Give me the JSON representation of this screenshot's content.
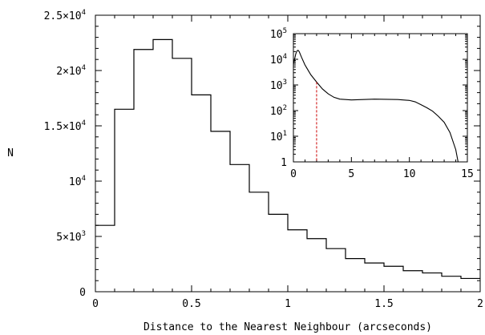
{
  "chart_data": [
    {
      "type": "histogram",
      "scale": "linear",
      "xlabel": "Distance to the Nearest Neighbour (arcseconds)",
      "ylabel": "N",
      "xlim": [
        0,
        2
      ],
      "ylim": [
        0,
        25000
      ],
      "bin_edges": [
        0,
        0.1,
        0.2,
        0.3,
        0.4,
        0.5,
        0.6,
        0.7,
        0.8,
        0.9,
        1.0,
        1.1,
        1.2,
        1.3,
        1.4,
        1.5,
        1.6,
        1.7,
        1.8,
        1.9,
        2.0
      ],
      "values": [
        6000,
        16500,
        21900,
        22800,
        21100,
        17800,
        14500,
        11500,
        9000,
        7000,
        5600,
        4800,
        3900,
        3000,
        2600,
        2300,
        1900,
        1700,
        1400,
        1200
      ],
      "x_ticks": [
        "0",
        "0.5",
        "1",
        "1.5",
        "2"
      ],
      "y_ticks": [
        {
          "mant": "0",
          "exp": ""
        },
        {
          "mant": "5×10",
          "exp": "3"
        },
        {
          "mant": "10",
          "exp": "4"
        },
        {
          "mant": "1.5×10",
          "exp": "4"
        },
        {
          "mant": "2×10",
          "exp": "4"
        },
        {
          "mant": "2.5×10",
          "exp": "4"
        }
      ],
      "grid": false
    },
    {
      "type": "histogram",
      "scale": "log-y",
      "inset": true,
      "xlim": [
        0,
        15
      ],
      "ylim": [
        1,
        100000
      ],
      "points": [
        [
          0,
          6500
        ],
        [
          0.1,
          10000
        ],
        [
          0.2,
          16000
        ],
        [
          0.3,
          21000
        ],
        [
          0.4,
          22500
        ],
        [
          0.5,
          20000
        ],
        [
          0.7,
          12000
        ],
        [
          1,
          6000
        ],
        [
          1.5,
          2500
        ],
        [
          2,
          1300
        ],
        [
          2.5,
          700
        ],
        [
          3,
          450
        ],
        [
          3.5,
          330
        ],
        [
          4,
          280
        ],
        [
          5,
          260
        ],
        [
          6,
          270
        ],
        [
          7,
          280
        ],
        [
          8,
          275
        ],
        [
          9,
          270
        ],
        [
          10,
          250
        ],
        [
          10.5,
          220
        ],
        [
          11,
          170
        ],
        [
          11.5,
          130
        ],
        [
          12,
          95
        ],
        [
          12.5,
          60
        ],
        [
          13,
          35
        ],
        [
          13.5,
          14
        ],
        [
          14,
          3
        ],
        [
          14.2,
          1
        ]
      ],
      "marker_x": 2.0,
      "marker_color": "#cc0000",
      "x_ticks": [
        "0",
        "5",
        "10",
        "15"
      ],
      "y_ticks": [
        "1",
        "10",
        "10",
        "10",
        "10",
        "10"
      ],
      "y_tick_exps": [
        "",
        "1",
        "2",
        "3",
        "4",
        "5"
      ]
    }
  ]
}
